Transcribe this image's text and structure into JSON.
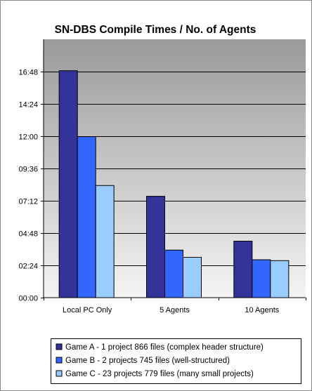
{
  "chart_data": {
    "type": "bar",
    "title": "SN-DBS Compile Times / No. of Agents",
    "xlabel": "",
    "ylabel": "",
    "categories": [
      "Local PC Only",
      "5 Agents",
      "10 Agents"
    ],
    "series": [
      {
        "name": "Game A - 1 project 866 files (complex header structure)",
        "values": [
          1012,
          452,
          252
        ],
        "color": "#333399"
      },
      {
        "name": "Game B - 2 projects 745 files (well-structured)",
        "values": [
          718,
          212,
          169
        ],
        "color": "#3366ff"
      },
      {
        "name": "Game C - 23 projects 779 files (many small projects)",
        "values": [
          500,
          180,
          165
        ],
        "color": "#99ccff"
      }
    ],
    "ylim": [
      0,
      1152
    ],
    "yticks": [
      0,
      144,
      288,
      432,
      576,
      720,
      864,
      1008
    ],
    "ytick_labels": [
      "00:00",
      "02:24",
      "04:48",
      "07:12",
      "09:36",
      "12:00",
      "14:24",
      "16:48"
    ],
    "grid": true,
    "legend_position": "bottom",
    "plot_background": [
      "#9a9a9a",
      "#f4f4f4"
    ]
  }
}
